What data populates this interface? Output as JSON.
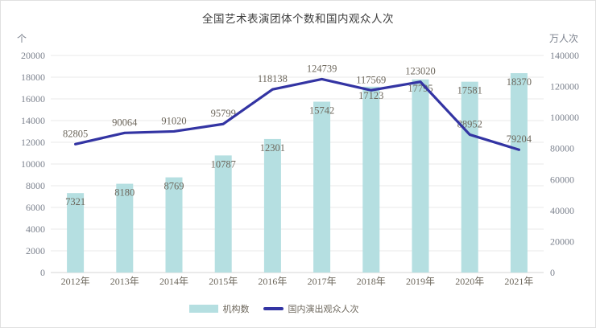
{
  "title": "全国艺术表演团体个数和国内观众人次",
  "axes": {
    "left_unit": "个",
    "right_unit": "万人次"
  },
  "legend": {
    "bar_label": "机构数",
    "line_label": "国内演出观众人次"
  },
  "colors": {
    "bar": "#b5dfe1",
    "line": "#3334a3",
    "grid": "#e9e9e9",
    "axis": "#d4d4d4",
    "tick_text": "#7c828e",
    "label_text": "#6d675c",
    "title_text": "#3d3d3d",
    "border": "#e0e0e0"
  },
  "chart_data": {
    "type": "bar+line",
    "title": "全国艺术表演团体个数和国内观众人次",
    "categories": [
      "2012年",
      "2013年",
      "2014年",
      "2015年",
      "2016年",
      "2017年",
      "2018年",
      "2019年",
      "2020年",
      "2021年"
    ],
    "series": [
      {
        "name": "机构数",
        "type": "bar",
        "axis": "left",
        "values": [
          7321,
          8180,
          8769,
          10787,
          12301,
          15742,
          17123,
          17795,
          17581,
          18370
        ]
      },
      {
        "name": "国内演出观众人次",
        "type": "line",
        "axis": "right",
        "values": [
          82805,
          90064,
          91020,
          95799,
          118138,
          124739,
          117569,
          123020,
          88952,
          79204
        ]
      }
    ],
    "left_axis": {
      "label": "个",
      "min": 0,
      "max": 20000,
      "step": 2000
    },
    "right_axis": {
      "label": "万人次",
      "min": 0,
      "max": 140000,
      "step": 20000
    },
    "grid": true,
    "legend_position": "bottom"
  }
}
